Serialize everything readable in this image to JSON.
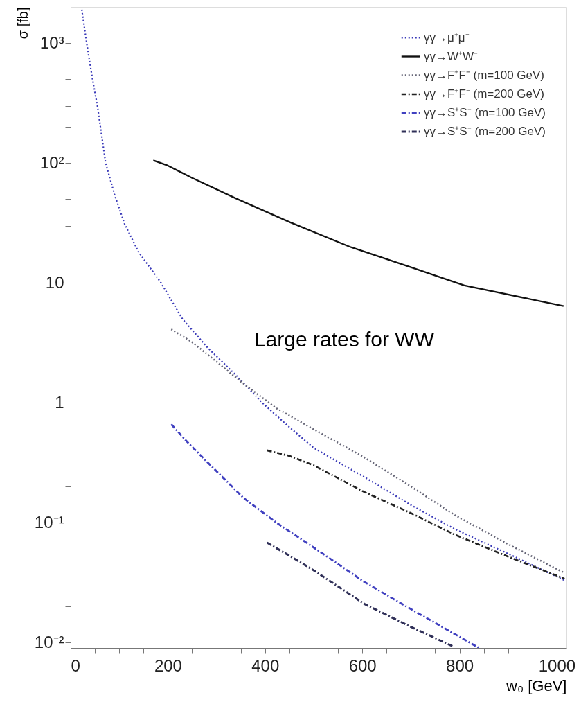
{
  "chart_data": {
    "type": "line",
    "xlabel": "w₀ [GeV]",
    "ylabel": "σ [fb]",
    "xlim": [
      0,
      1020
    ],
    "ylim": [
      0.009,
      2000
    ],
    "log": "y",
    "xticks": [
      0,
      {
        "value": 50,
        "label": null
      },
      {
        "value": 100,
        "label": null
      },
      {
        "value": 150,
        "label": null
      },
      200,
      {
        "value": 250,
        "label": null
      },
      {
        "value": 300,
        "label": null
      },
      {
        "value": 350,
        "label": null
      },
      400,
      {
        "value": 450,
        "label": null
      },
      {
        "value": 500,
        "label": null
      },
      {
        "value": 550,
        "label": null
      },
      600,
      {
        "value": 650,
        "label": null
      },
      {
        "value": 700,
        "label": null
      },
      {
        "value": 750,
        "label": null
      },
      800,
      {
        "value": 850,
        "label": null
      },
      {
        "value": 900,
        "label": null
      },
      {
        "value": 950,
        "label": null
      },
      1000
    ],
    "yticks": [
      {
        "value": 0.01,
        "label": "10⁻²"
      },
      {
        "value": 0.02,
        "label": null
      },
      {
        "value": 0.03,
        "label": null
      },
      {
        "value": 0.05,
        "label": null
      },
      {
        "value": 0.1,
        "label": "10⁻¹"
      },
      {
        "value": 0.2,
        "label": null
      },
      {
        "value": 0.3,
        "label": null
      },
      {
        "value": 0.5,
        "label": null
      },
      1,
      {
        "value": 2,
        "label": null
      },
      {
        "value": 3,
        "label": null
      },
      {
        "value": 5,
        "label": null
      },
      10,
      {
        "value": 20,
        "label": null
      },
      {
        "value": 30,
        "label": null
      },
      {
        "value": 50,
        "label": null
      },
      {
        "value": 100,
        "label": "10²"
      },
      {
        "value": 200,
        "label": null
      },
      {
        "value": 300,
        "label": null
      },
      {
        "value": 500,
        "label": null
      },
      {
        "value": 1000,
        "label": "10³"
      }
    ],
    "grid": false,
    "legend": "top right",
    "annotations": [
      "Large rates for WW"
    ],
    "series": [
      {
        "name": "γγ→μ⁺μ⁻",
        "color": "#3a3ab8",
        "line_style": "dotted",
        "x": [
          23,
          33,
          45,
          55,
          72,
          90,
          111,
          140,
          186,
          230,
          281,
          340,
          394,
          447,
          500,
          604,
          700,
          791,
          900,
          1016
        ],
        "values": [
          1900,
          1000,
          500,
          300,
          100,
          55,
          31,
          18,
          10,
          5,
          2.9,
          1.7,
          1,
          0.64,
          0.42,
          0.24,
          0.14,
          0.088,
          0.055,
          0.033
        ]
      },
      {
        "name": "γγ→W⁺W⁻",
        "color": "#111111",
        "line_style": "solid",
        "x": [
          170,
          200,
          250,
          338,
          451,
          574,
          700,
          810,
          1014
        ],
        "values": [
          105,
          95,
          75,
          51,
          32,
          20,
          13.5,
          9.5,
          6.4
        ]
      },
      {
        "name": "γγ→F⁺F⁻ (m=100 GeV)",
        "color": "#666677",
        "line_style": "dotted",
        "x": [
          207,
          250,
          300,
          350,
          423,
          500,
          604,
          700,
          791,
          900,
          1016
        ],
        "values": [
          4.1,
          3.2,
          2.2,
          1.5,
          0.9,
          0.6,
          0.35,
          0.2,
          0.115,
          0.066,
          0.038
        ]
      },
      {
        "name": "γγ→F⁺F⁻ (m=200 GeV)",
        "color": "#222222",
        "line_style": "dashed",
        "x": [
          404,
          450,
          500,
          604,
          700,
          791,
          900,
          1016
        ],
        "values": [
          0.4,
          0.36,
          0.3,
          0.18,
          0.12,
          0.079,
          0.052,
          0.034
        ]
      },
      {
        "name": "γγ→S⁺S⁻ (m=100 GeV)",
        "color": "#4040c0",
        "line_style": "dashed",
        "x": [
          207,
          240,
          281,
          356,
          423,
          500,
          604,
          700,
          791,
          840
        ],
        "values": [
          0.66,
          0.47,
          0.32,
          0.16,
          0.1,
          0.062,
          0.032,
          0.019,
          0.0117,
          0.009
        ]
      },
      {
        "name": "γγ→S⁺S⁻ (m=200 GeV)",
        "color": "#303058",
        "line_style": "dashed",
        "x": [
          404,
          450,
          500,
          604,
          700,
          786
        ],
        "values": [
          0.068,
          0.053,
          0.04,
          0.021,
          0.0135,
          0.0093
        ]
      }
    ]
  }
}
